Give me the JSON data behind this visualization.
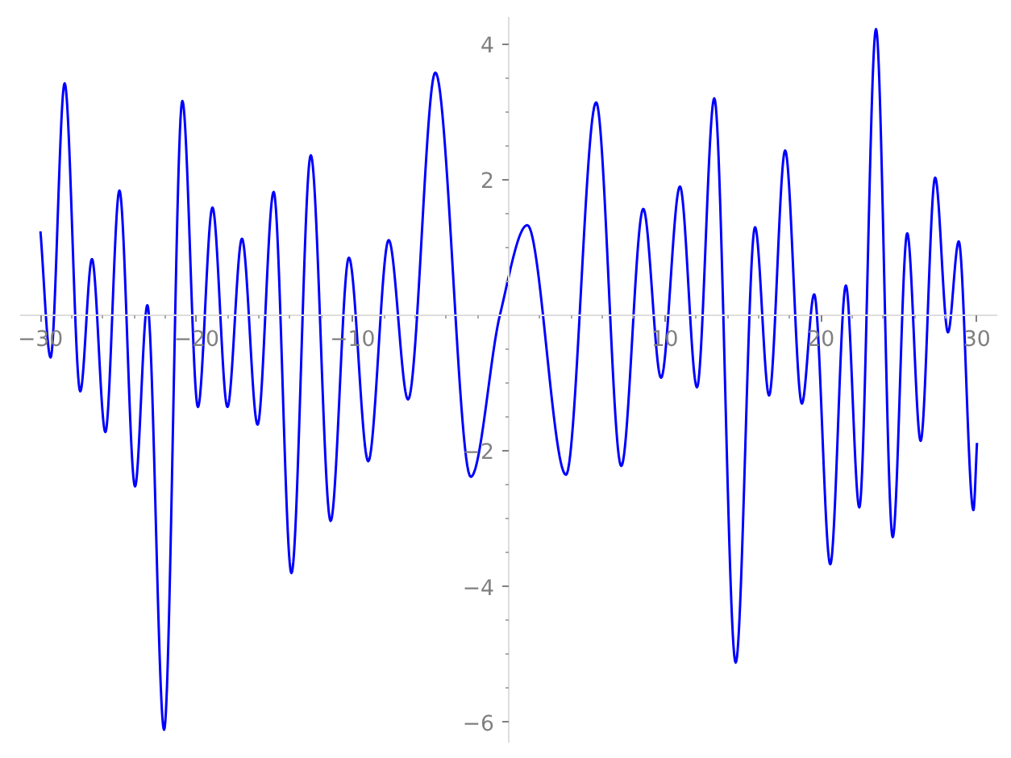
{
  "chart_data": {
    "type": "line",
    "x": [
      -30.0,
      -29.35,
      -28.45,
      -27.45,
      -26.7,
      -25.84,
      -24.94,
      -23.94,
      -23.15,
      -22.08,
      -20.91,
      -19.91,
      -18.98,
      -18.02,
      -17.09,
      -16.09,
      -15.06,
      -13.92,
      -12.68,
      -11.41,
      -10.24,
      -9.0,
      -7.69,
      -6.45,
      -4.7,
      -2.43,
      -0.57,
      1.19,
      3.67,
      5.6,
      7.21,
      8.62,
      9.76,
      10.97,
      12.06,
      13.17,
      14.54,
      15.78,
      16.68,
      17.71,
      18.78,
      19.57,
      20.6,
      21.6,
      22.46,
      23.53,
      24.6,
      25.53,
      26.39,
      27.32,
      28.14,
      28.83,
      29.77,
      30.0
    ],
    "series": [
      {
        "color": "#0000ff",
        "values": [
          1.24,
          -0.62,
          3.42,
          -1.12,
          0.83,
          -1.72,
          1.84,
          -2.52,
          0.15,
          -6.11,
          3.16,
          -1.35,
          1.59,
          -1.35,
          1.13,
          -1.61,
          1.82,
          -3.8,
          2.36,
          -3.03,
          0.85,
          -2.15,
          1.11,
          -1.24,
          3.58,
          -2.38,
          0.0,
          1.33,
          -2.35,
          3.14,
          -2.22,
          1.57,
          -0.92,
          1.9,
          -1.06,
          3.2,
          -5.12,
          1.3,
          -1.18,
          2.43,
          -1.3,
          0.31,
          -3.67,
          0.44,
          -2.83,
          4.22,
          -3.27,
          1.21,
          -1.85,
          2.03,
          -0.25,
          1.09,
          -2.87,
          -1.88
        ]
      }
    ],
    "xlim": [
      -31.3,
      31.3
    ],
    "ylim": [
      -6.3,
      4.4
    ],
    "xticks": [
      {
        "value": -30,
        "label": "−30"
      },
      {
        "value": -28,
        "label": null
      },
      {
        "value": -26,
        "label": null
      },
      {
        "value": -24,
        "label": null
      },
      {
        "value": -22,
        "label": null
      },
      {
        "value": -20,
        "label": "−20"
      },
      {
        "value": -18,
        "label": null
      },
      {
        "value": -16,
        "label": null
      },
      {
        "value": -14,
        "label": null
      },
      {
        "value": -12,
        "label": null
      },
      {
        "value": -10,
        "label": "−10"
      },
      {
        "value": -8,
        "label": null
      },
      {
        "value": -6,
        "label": null
      },
      {
        "value": -4,
        "label": null
      },
      {
        "value": -2,
        "label": null
      },
      {
        "value": 2,
        "label": null
      },
      {
        "value": 4,
        "label": null
      },
      {
        "value": 6,
        "label": null
      },
      {
        "value": 8,
        "label": null
      },
      {
        "value": 10,
        "label": "10"
      },
      {
        "value": 12,
        "label": null
      },
      {
        "value": 14,
        "label": null
      },
      {
        "value": 16,
        "label": null
      },
      {
        "value": 18,
        "label": null
      },
      {
        "value": 20,
        "label": "20"
      },
      {
        "value": 22,
        "label": null
      },
      {
        "value": 24,
        "label": null
      },
      {
        "value": 26,
        "label": null
      },
      {
        "value": 28,
        "label": null
      },
      {
        "value": 30,
        "label": "30"
      }
    ],
    "yticks": [
      {
        "value": -6,
        "label": "−6"
      },
      {
        "value": -5.5,
        "label": null
      },
      {
        "value": -5,
        "label": null
      },
      {
        "value": -4.5,
        "label": null
      },
      {
        "value": -4,
        "label": "−4"
      },
      {
        "value": -3.5,
        "label": null
      },
      {
        "value": -3,
        "label": null
      },
      {
        "value": -2.5,
        "label": null
      },
      {
        "value": -2,
        "label": "−2"
      },
      {
        "value": -1.5,
        "label": null
      },
      {
        "value": -1,
        "label": null
      },
      {
        "value": -0.5,
        "label": null
      },
      {
        "value": 0.5,
        "label": null
      },
      {
        "value": 1,
        "label": null
      },
      {
        "value": 1.5,
        "label": null
      },
      {
        "value": 2,
        "label": "2"
      },
      {
        "value": 2.5,
        "label": null
      },
      {
        "value": 3,
        "label": null
      },
      {
        "value": 3.5,
        "label": null
      },
      {
        "value": 4,
        "label": "4"
      }
    ],
    "grid": false,
    "line_style": "solid"
  }
}
